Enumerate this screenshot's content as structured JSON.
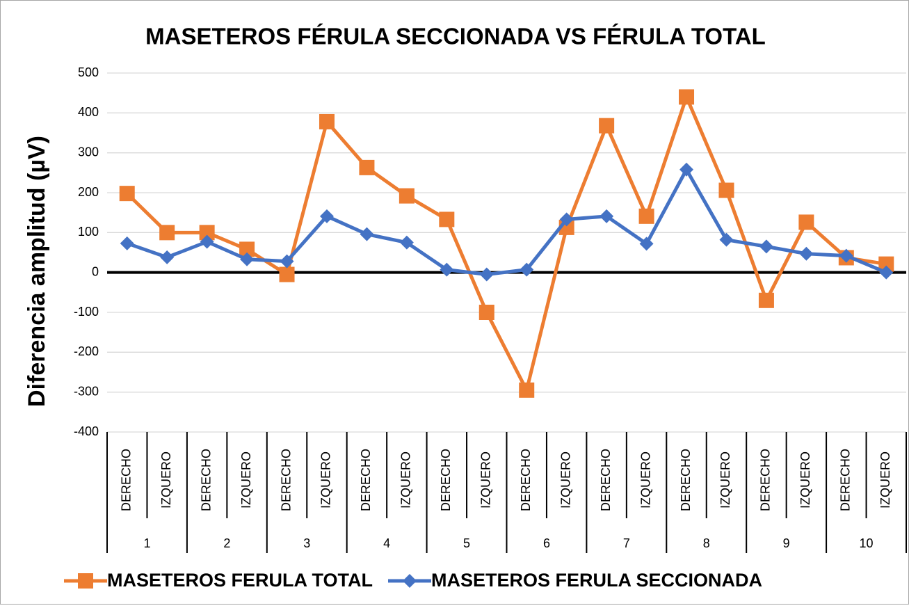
{
  "chart_data": {
    "type": "line",
    "title": "MASETEROS FÉRULA SECCIONADA VS FÉRULA TOTAL",
    "y_label": "Diferencia amplitud (µV)",
    "categories": [
      "DERECHO",
      "IZQUERO",
      "DERECHO",
      "IZQUERO",
      "DERECHO",
      "IZQUERO",
      "DERECHO",
      "IZQUERO",
      "DERECHO",
      "IZQUERO",
      "DERECHO",
      "IZQUERO",
      "DERECHO",
      "IZQUERO",
      "DERECHO",
      "IZQUERO",
      "DERECHO",
      "IZQUERO",
      "DERECHO",
      "IZQUERO"
    ],
    "groups": [
      "1",
      "2",
      "3",
      "4",
      "5",
      "6",
      "7",
      "8",
      "9",
      "10"
    ],
    "series": [
      {
        "name": "MASETEROS FERULA TOTAL",
        "color": "#ed7d31",
        "marker": "square",
        "values": [
          198,
          100,
          100,
          58,
          -5,
          378,
          263,
          192,
          133,
          -100,
          -295,
          113,
          368,
          141,
          440,
          206,
          -70,
          126,
          37,
          21
        ]
      },
      {
        "name": "MASETEROS FERULA SECCIONADA",
        "color": "#4472c4",
        "marker": "diamond",
        "values": [
          73,
          38,
          77,
          33,
          28,
          141,
          96,
          75,
          7,
          -5,
          7,
          133,
          141,
          72,
          258,
          82,
          65,
          47,
          42,
          0
        ]
      }
    ],
    "ylim": [
      -400,
      500
    ],
    "yticks": [
      -400,
      -300,
      -200,
      -100,
      0,
      100,
      200,
      300,
      400,
      500
    ],
    "grid": true,
    "legend": "bottom"
  }
}
